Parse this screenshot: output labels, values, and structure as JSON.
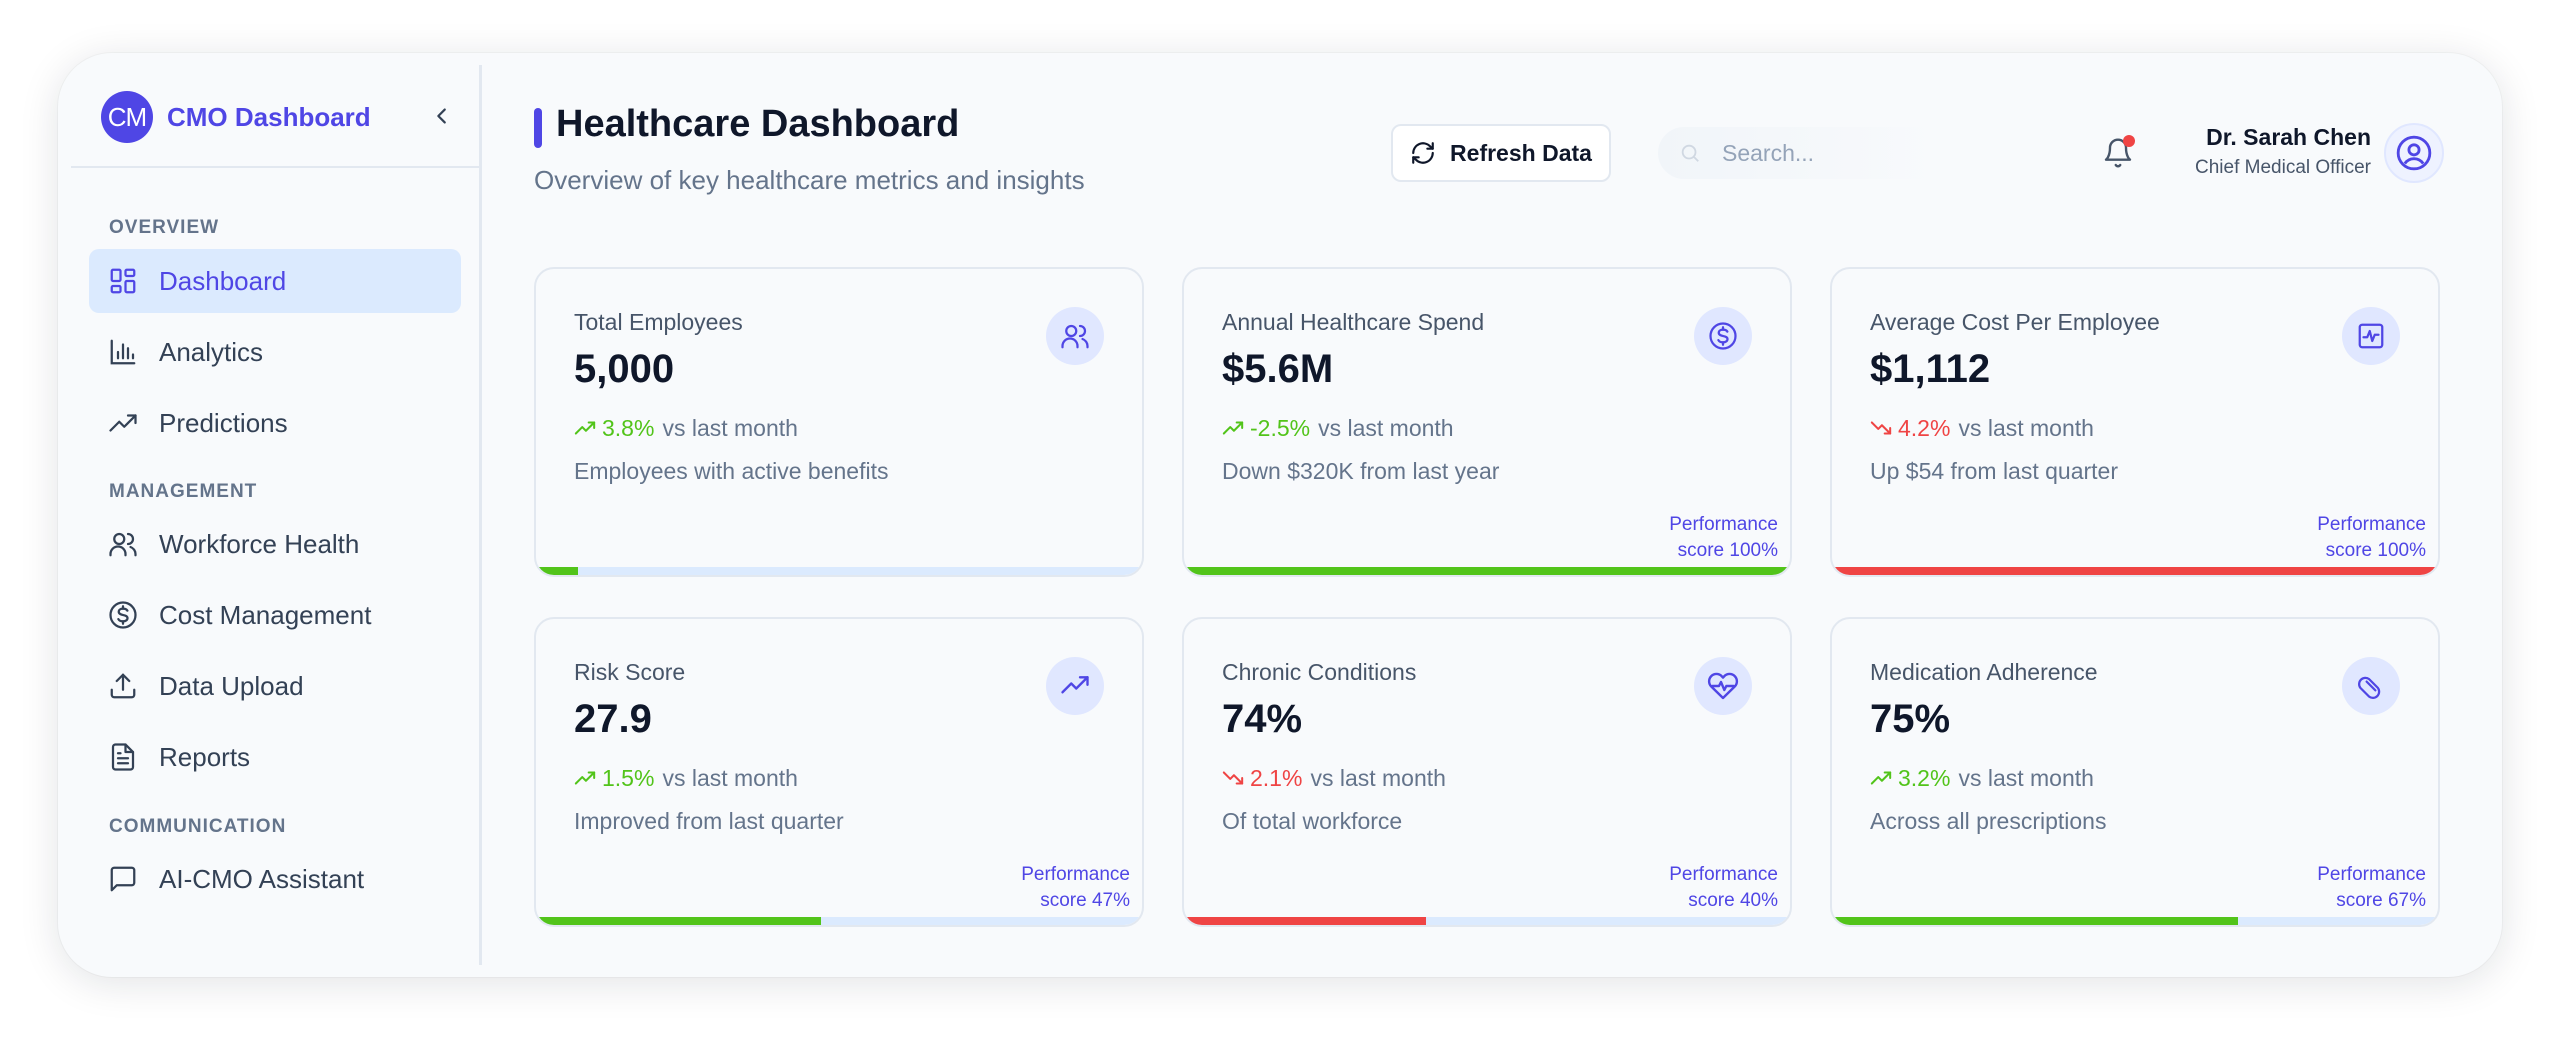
{
  "brand": {
    "logo_text": "CM",
    "name": "CMO Dashboard"
  },
  "sidebar": {
    "sections": [
      {
        "title": "OVERVIEW"
      },
      {
        "title": "MANAGEMENT"
      },
      {
        "title": "COMMUNICATION"
      }
    ],
    "items": [
      {
        "label": "Dashboard",
        "icon": "grid-icon",
        "active": true
      },
      {
        "label": "Analytics",
        "icon": "bar-chart-icon"
      },
      {
        "label": "Predictions",
        "icon": "trend-up-icon"
      },
      {
        "label": "Workforce Health",
        "icon": "users-icon"
      },
      {
        "label": "Cost Management",
        "icon": "dollar-circle-icon"
      },
      {
        "label": "Data Upload",
        "icon": "upload-icon"
      },
      {
        "label": "Reports",
        "icon": "file-text-icon"
      },
      {
        "label": "AI-CMO Assistant",
        "icon": "message-icon"
      }
    ]
  },
  "header": {
    "title": "Healthcare Dashboard",
    "subtitle": "Overview of key healthcare metrics and insights",
    "refresh_label": "Refresh Data",
    "search_placeholder": "Search...",
    "user": {
      "name": "Dr. Sarah Chen",
      "role": "Chief Medical Officer"
    }
  },
  "colors": {
    "accent": "#4f46e5",
    "positive": "#52c41a",
    "negative": "#ef4444",
    "track": "#dbeafe"
  },
  "cards": [
    {
      "title": "Total Employees",
      "value": "5,000",
      "trend": "3.8%",
      "trend_dir": "up",
      "trend_suffix": "vs last month",
      "description": "Employees with active benefits",
      "icon": "users-icon",
      "perf_line1": "",
      "perf_line2": "",
      "progress": 0.07,
      "bar_color": "#52c41a"
    },
    {
      "title": "Annual Healthcare Spend",
      "value": "$5.6M",
      "trend": "-2.5%",
      "trend_dir": "up",
      "trend_suffix": "vs last month",
      "description": "Down $320K from last year",
      "icon": "dollar-circle-icon",
      "perf_line1": "Performance",
      "perf_line2": "score 100%",
      "progress": 1.0,
      "bar_color": "#52c41a"
    },
    {
      "title": "Average Cost Per Employee",
      "value": "$1,112",
      "trend": "4.2%",
      "trend_dir": "down",
      "trend_suffix": "vs last month",
      "description": "Up $54 from last quarter",
      "icon": "activity-square-icon",
      "perf_line1": "Performance",
      "perf_line2": "score 100%",
      "progress": 1.0,
      "bar_color": "#ef4444"
    },
    {
      "title": "Risk Score",
      "value": "27.9",
      "trend": "1.5%",
      "trend_dir": "up",
      "trend_suffix": "vs last month",
      "description": "Improved from last quarter",
      "icon": "trend-up-icon",
      "perf_line1": "Performance",
      "perf_line2": "score 47%",
      "progress": 0.47,
      "bar_color": "#52c41a"
    },
    {
      "title": "Chronic Conditions",
      "value": "74%",
      "trend": "2.1%",
      "trend_dir": "down",
      "trend_suffix": "vs last month",
      "description": "Of total workforce",
      "icon": "heart-pulse-icon",
      "perf_line1": "Performance",
      "perf_line2": "score 40%",
      "progress": 0.4,
      "bar_color": "#ef4444"
    },
    {
      "title": "Medication Adherence",
      "value": "75%",
      "trend": "3.2%",
      "trend_dir": "up",
      "trend_suffix": "vs last month",
      "description": "Across all prescriptions",
      "icon": "pill-icon",
      "perf_line1": "Performance",
      "perf_line2": "score 67%",
      "progress": 0.67,
      "bar_color": "#52c41a"
    }
  ]
}
